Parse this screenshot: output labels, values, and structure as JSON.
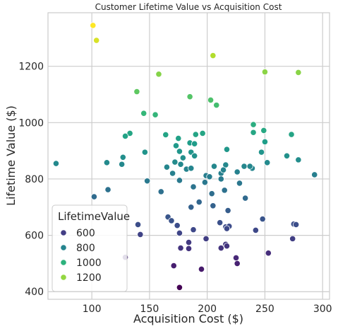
{
  "chart_data": {
    "type": "scatter",
    "title": "Customer Lifetime Value vs Acquisition Cost",
    "xlabel": "Acquisition Cost ($)",
    "ylabel": "Lifetime Value ($)",
    "xlim": [
      62,
      306
    ],
    "ylim": [
      373,
      1390
    ],
    "xticks": [
      100,
      150,
      200,
      250,
      300
    ],
    "yticks": [
      400,
      600,
      800,
      1000,
      1200
    ],
    "grid": true,
    "colormap": "viridis",
    "hue_range": [
      415,
      1345
    ],
    "legend": {
      "title": "LifetimeValue",
      "placement": "lower-left",
      "entries": [
        {
          "label": "600",
          "color": "#433e85"
        },
        {
          "label": "800",
          "color": "#25848e"
        },
        {
          "label": "1000",
          "color": "#2db27d"
        },
        {
          "label": "1200",
          "color": "#93d741"
        }
      ]
    },
    "points": [
      {
        "x": 101,
        "y": 1345
      },
      {
        "x": 104,
        "y": 1292
      },
      {
        "x": 205,
        "y": 1238
      },
      {
        "x": 158,
        "y": 1172
      },
      {
        "x": 250,
        "y": 1180
      },
      {
        "x": 279,
        "y": 1178
      },
      {
        "x": 139,
        "y": 1110
      },
      {
        "x": 185,
        "y": 1092
      },
      {
        "x": 203,
        "y": 1080
      },
      {
        "x": 208,
        "y": 1062
      },
      {
        "x": 145,
        "y": 1033
      },
      {
        "x": 155,
        "y": 1028
      },
      {
        "x": 240,
        "y": 993
      },
      {
        "x": 249,
        "y": 972
      },
      {
        "x": 240,
        "y": 965
      },
      {
        "x": 273,
        "y": 958
      },
      {
        "x": 133,
        "y": 962
      },
      {
        "x": 129,
        "y": 952
      },
      {
        "x": 164,
        "y": 957
      },
      {
        "x": 175,
        "y": 944
      },
      {
        "x": 196,
        "y": 962
      },
      {
        "x": 190,
        "y": 958
      },
      {
        "x": 173,
        "y": 918
      },
      {
        "x": 185,
        "y": 928
      },
      {
        "x": 189,
        "y": 925
      },
      {
        "x": 250,
        "y": 932
      },
      {
        "x": 146,
        "y": 895
      },
      {
        "x": 176,
        "y": 898
      },
      {
        "x": 186,
        "y": 895
      },
      {
        "x": 217,
        "y": 905
      },
      {
        "x": 247,
        "y": 895
      },
      {
        "x": 127,
        "y": 877
      },
      {
        "x": 179,
        "y": 875
      },
      {
        "x": 189,
        "y": 882
      },
      {
        "x": 269,
        "y": 882
      },
      {
        "x": 279,
        "y": 868
      },
      {
        "x": 69,
        "y": 855
      },
      {
        "x": 113,
        "y": 858
      },
      {
        "x": 126,
        "y": 852
      },
      {
        "x": 165,
        "y": 842
      },
      {
        "x": 172,
        "y": 860
      },
      {
        "x": 177,
        "y": 852
      },
      {
        "x": 182,
        "y": 835
      },
      {
        "x": 186,
        "y": 838
      },
      {
        "x": 206,
        "y": 845
      },
      {
        "x": 216,
        "y": 850
      },
      {
        "x": 226,
        "y": 825
      },
      {
        "x": 232,
        "y": 845
      },
      {
        "x": 239,
        "y": 838
      },
      {
        "x": 237,
        "y": 845
      },
      {
        "x": 252,
        "y": 858
      },
      {
        "x": 170,
        "y": 820
      },
      {
        "x": 199,
        "y": 812
      },
      {
        "x": 202,
        "y": 808
      },
      {
        "x": 212,
        "y": 820
      },
      {
        "x": 214,
        "y": 832
      },
      {
        "x": 148,
        "y": 793
      },
      {
        "x": 176,
        "y": 795
      },
      {
        "x": 198,
        "y": 788
      },
      {
        "x": 212,
        "y": 800
      },
      {
        "x": 228,
        "y": 785
      },
      {
        "x": 293,
        "y": 815
      },
      {
        "x": 114,
        "y": 762
      },
      {
        "x": 160,
        "y": 755
      },
      {
        "x": 188,
        "y": 772
      },
      {
        "x": 204,
        "y": 748
      },
      {
        "x": 215,
        "y": 760
      },
      {
        "x": 102,
        "y": 737
      },
      {
        "x": 193,
        "y": 718
      },
      {
        "x": 205,
        "y": 705
      },
      {
        "x": 233,
        "y": 732
      },
      {
        "x": 186,
        "y": 700
      },
      {
        "x": 218,
        "y": 688
      },
      {
        "x": 166,
        "y": 665
      },
      {
        "x": 169,
        "y": 652
      },
      {
        "x": 248,
        "y": 658
      },
      {
        "x": 140,
        "y": 638
      },
      {
        "x": 174,
        "y": 635
      },
      {
        "x": 211,
        "y": 645
      },
      {
        "x": 216,
        "y": 630
      },
      {
        "x": 219,
        "y": 632
      },
      {
        "x": 217,
        "y": 624
      },
      {
        "x": 275,
        "y": 640
      },
      {
        "x": 277,
        "y": 638
      },
      {
        "x": 142,
        "y": 603
      },
      {
        "x": 176,
        "y": 608
      },
      {
        "x": 188,
        "y": 620
      },
      {
        "x": 242,
        "y": 618
      },
      {
        "x": 199,
        "y": 588
      },
      {
        "x": 274,
        "y": 588
      },
      {
        "x": 184,
        "y": 575
      },
      {
        "x": 216,
        "y": 568
      },
      {
        "x": 217,
        "y": 562
      },
      {
        "x": 177,
        "y": 555
      },
      {
        "x": 184,
        "y": 553
      },
      {
        "x": 212,
        "y": 555
      },
      {
        "x": 253,
        "y": 537
      },
      {
        "x": 129,
        "y": 522
      },
      {
        "x": 225,
        "y": 520
      },
      {
        "x": 171,
        "y": 492
      },
      {
        "x": 195,
        "y": 480
      },
      {
        "x": 226,
        "y": 500
      },
      {
        "x": 176,
        "y": 415
      }
    ]
  }
}
